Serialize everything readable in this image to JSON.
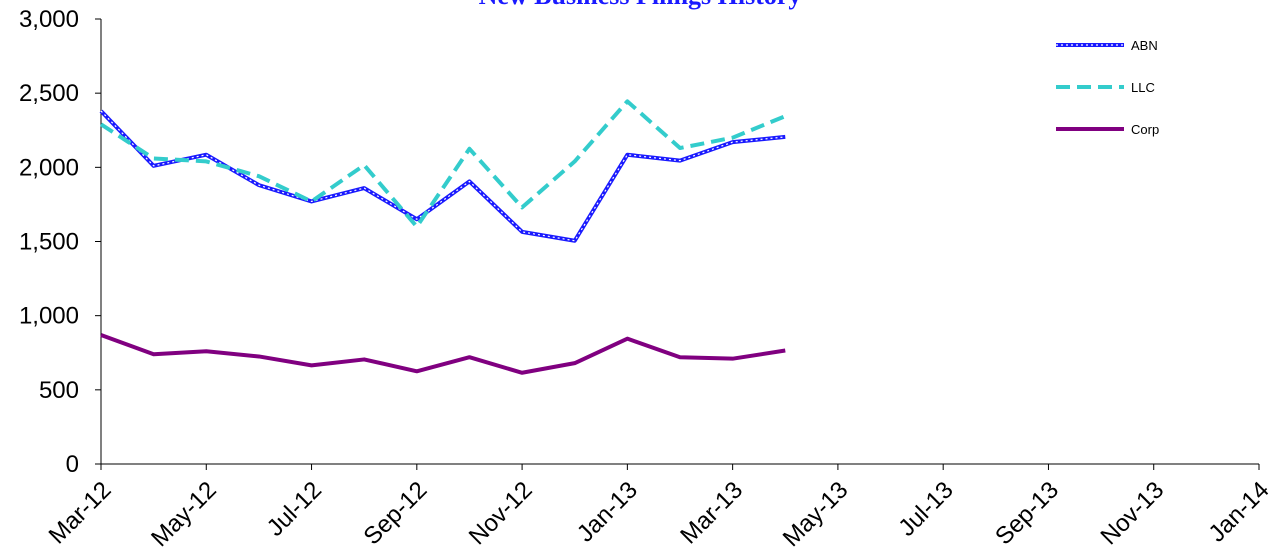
{
  "chart_data": {
    "type": "line",
    "title": "New Business Filings History",
    "xlabel": "",
    "ylabel": "",
    "ylim": [
      0,
      3000
    ],
    "yticks": [
      0,
      500,
      1000,
      1500,
      2000,
      2500,
      3000
    ],
    "ytick_labels": [
      "0",
      "500",
      "1,000",
      "1,500",
      "2,000",
      "2,500",
      "3,000"
    ],
    "xticks": [
      "Mar-12",
      "May-12",
      "Jul-12",
      "Sep-12",
      "Nov-12",
      "Jan-13",
      "Mar-13",
      "May-13",
      "Jul-13",
      "Sep-13",
      "Nov-13",
      "Jan-14"
    ],
    "x": [
      "Mar-12",
      "Apr-12",
      "May-12",
      "Jun-12",
      "Jul-12",
      "Aug-12",
      "Sep-12",
      "Oct-12",
      "Nov-12",
      "Dec-12",
      "Jan-13",
      "Feb-13",
      "Mar-13",
      "Apr-13"
    ],
    "legend_position": "top-right",
    "grid": false,
    "series": [
      {
        "name": "ABN",
        "color": "#1a1aff",
        "style": "solid-dotted",
        "values": [
          2380,
          2010,
          2085,
          1880,
          1770,
          1860,
          1650,
          1905,
          1565,
          1505,
          2085,
          2045,
          2170,
          2205
        ]
      },
      {
        "name": "LLC",
        "color": "#33cccc",
        "style": "dashed",
        "values": [
          2290,
          2060,
          2040,
          1940,
          1770,
          2015,
          1600,
          2125,
          1730,
          2040,
          2445,
          2130,
          2200,
          2345
        ]
      },
      {
        "name": "Corp",
        "color": "#800080",
        "style": "solid",
        "values": [
          870,
          740,
          760,
          725,
          665,
          705,
          625,
          720,
          615,
          680,
          845,
          720,
          710,
          765
        ]
      }
    ]
  }
}
